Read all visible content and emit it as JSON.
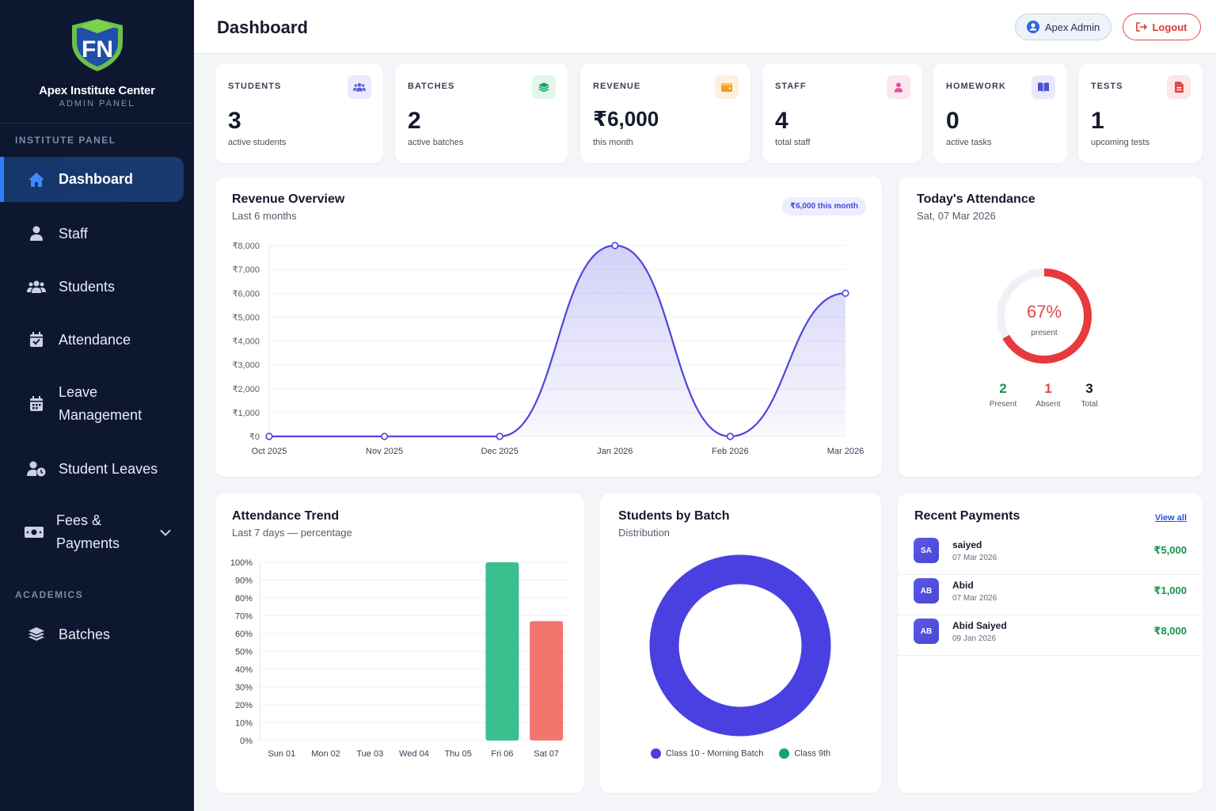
{
  "brand": {
    "name": "Apex Institute Center",
    "sub": "ADMIN PANEL",
    "logo_letters": "FN"
  },
  "sidebar": {
    "section_institute": "INSTITUTE PANEL",
    "section_academics": "ACADEMICS",
    "items": [
      {
        "label": "Dashboard",
        "icon": "home-icon",
        "active": true
      },
      {
        "label": "Staff",
        "icon": "user-icon"
      },
      {
        "label": "Students",
        "icon": "users-icon"
      },
      {
        "label": "Attendance",
        "icon": "calendar-check-icon"
      },
      {
        "label_line1": "Leave",
        "label_line2": "Management",
        "icon": "calendar-icon"
      },
      {
        "label": "Student Leaves",
        "icon": "user-clock-icon"
      },
      {
        "label_line1": "Fees &",
        "label_line2": "Payments",
        "icon": "money-icon"
      },
      {
        "label": "Batches",
        "icon": "layers-icon"
      }
    ]
  },
  "header": {
    "title": "Dashboard",
    "admin_label": "Apex Admin",
    "logout_label": "Logout"
  },
  "stats": [
    {
      "label": "STUDENTS",
      "value": "3",
      "sub": "active students",
      "icon": "users-icon",
      "color": "#5b5bd6"
    },
    {
      "label": "BATCHES",
      "value": "2",
      "sub": "active batches",
      "icon": "layers-icon",
      "color": "#16a36a"
    },
    {
      "label": "REVENUE",
      "value": "₹6,000",
      "sub": "this month",
      "icon": "wallet-icon",
      "color": "#f0a020"
    },
    {
      "label": "STAFF",
      "value": "4",
      "sub": "total staff",
      "icon": "user-icon",
      "color": "#e0509a"
    },
    {
      "label": "HOMEWORK",
      "value": "0",
      "sub": "active tasks",
      "icon": "book-icon",
      "color": "#4f4fd0"
    },
    {
      "label": "TESTS",
      "value": "1",
      "sub": "upcoming tests",
      "icon": "file-icon",
      "color": "#e24a4a"
    }
  ],
  "revenue": {
    "title": "Revenue Overview",
    "sub": "Last 6 months",
    "badge": "₹6,000 this month",
    "chart_data": {
      "type": "area",
      "categories": [
        "Oct 2025",
        "Nov 2025",
        "Dec 2025",
        "Jan 2026",
        "Feb 2026",
        "Mar 2026"
      ],
      "values": [
        0,
        0,
        0,
        8000,
        0,
        6000
      ],
      "ylim": [
        0,
        8000
      ],
      "yticks": [
        "₹0",
        "₹1,000",
        "₹2,000",
        "₹3,000",
        "₹4,000",
        "₹5,000",
        "₹6,000",
        "₹7,000",
        "₹8,000"
      ],
      "color": "#4f46d9"
    }
  },
  "attendance_today": {
    "title": "Today's Attendance",
    "date": "Sat, 07 Mar 2026",
    "percent_label": "67%",
    "percent": 67,
    "present_word": "present",
    "present": "2",
    "present_label": "Present",
    "absent": "1",
    "absent_label": "Absent",
    "total": "3",
    "total_label": "Total"
  },
  "trend": {
    "title": "Attendance Trend",
    "sub": "Last 7 days — percentage",
    "chart_data": {
      "type": "bar",
      "categories": [
        "Sun 01",
        "Mon 02",
        "Tue 03",
        "Wed 04",
        "Thu 05",
        "Fri 06",
        "Sat 07"
      ],
      "values": [
        0,
        0,
        0,
        0,
        0,
        100,
        67
      ],
      "ylim": [
        0,
        100
      ],
      "yticks": [
        "0%",
        "10%",
        "20%",
        "30%",
        "40%",
        "50%",
        "60%",
        "70%",
        "80%",
        "90%",
        "100%"
      ],
      "colors": [
        "#3bbf8e",
        "#3bbf8e",
        "#3bbf8e",
        "#3bbf8e",
        "#3bbf8e",
        "#3bbf8e",
        "#f3756e"
      ]
    }
  },
  "batch": {
    "title": "Students by Batch",
    "sub": "Distribution",
    "chart_data": {
      "type": "pie",
      "series": [
        {
          "name": "Class 10 - Morning Batch",
          "value": 3,
          "color": "#4a3fe0"
        },
        {
          "name": "Class 9th",
          "value": 0,
          "color": "#16a36a"
        }
      ]
    }
  },
  "payments": {
    "title": "Recent Payments",
    "view_all": "View all",
    "rows": [
      {
        "initials": "SA",
        "name": "saiyed",
        "date": "07 Mar 2026",
        "amount": "₹5,000"
      },
      {
        "initials": "AB",
        "name": "Abid",
        "date": "07 Mar 2026",
        "amount": "₹1,000"
      },
      {
        "initials": "AB",
        "name": "Abid Saiyed",
        "date": "09 Jan 2026",
        "amount": "₹8,000"
      }
    ]
  }
}
